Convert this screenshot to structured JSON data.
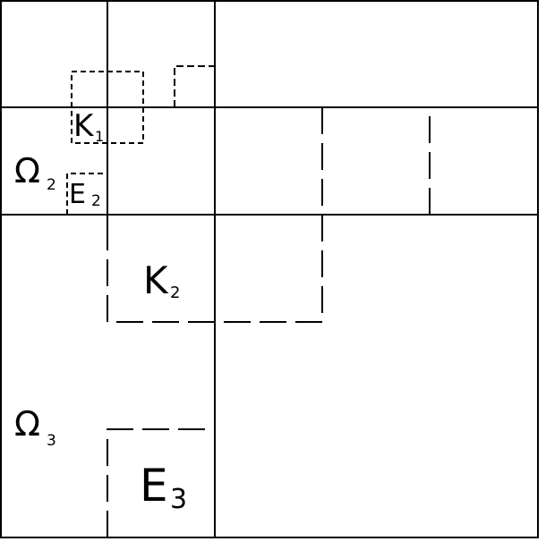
{
  "colors": {
    "line": "#000000",
    "background": "#ffffff"
  },
  "labels": {
    "k1": {
      "main": "K",
      "sub": "1"
    },
    "omega2": {
      "main": "Ω",
      "sub": "2"
    },
    "e2": {
      "main": "E",
      "sub": "2"
    },
    "k2": {
      "main": "K",
      "sub": "2"
    },
    "omega3": {
      "main": "Ω",
      "sub": "3"
    },
    "e3": {
      "main": "E",
      "sub": "3"
    }
  }
}
